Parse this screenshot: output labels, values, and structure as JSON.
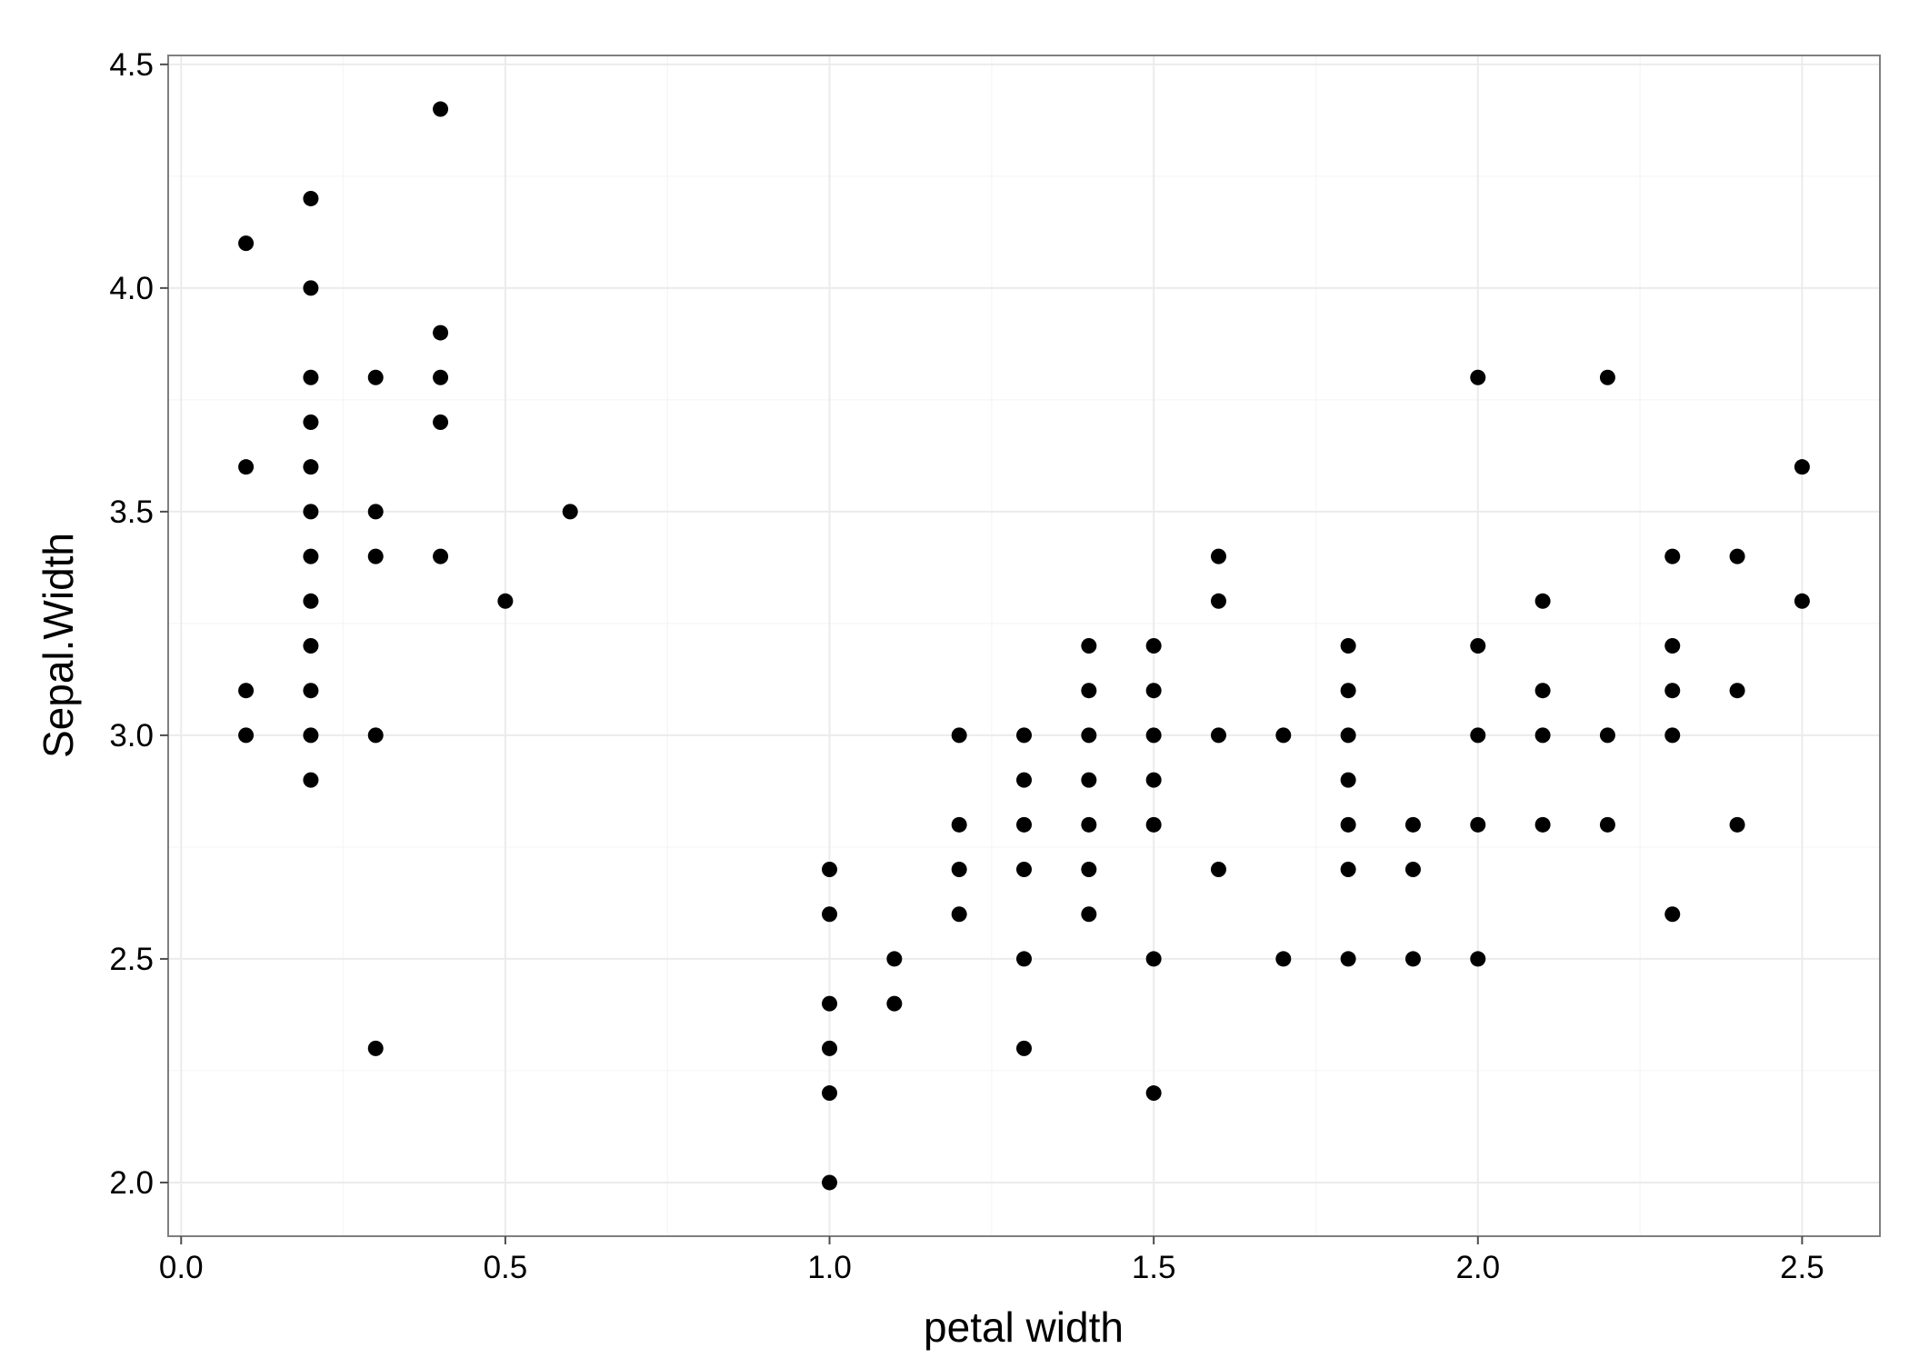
{
  "chart_data": {
    "type": "scatter",
    "xlabel": "petal width",
    "ylabel": "Sepal.Width",
    "xlim": [
      -0.02,
      2.62
    ],
    "ylim": [
      1.88,
      4.52
    ],
    "grid": true,
    "x_ticks": [
      {
        "value": 0.0,
        "label": "0.0"
      },
      {
        "value": 0.5,
        "label": "0.5"
      },
      {
        "value": 1.0,
        "label": "1.0"
      },
      {
        "value": 1.5,
        "label": "1.5"
      },
      {
        "value": 2.0,
        "label": "2.0"
      },
      {
        "value": 2.5,
        "label": "2.5"
      }
    ],
    "y_ticks": [
      {
        "value": 2.0,
        "label": "2.0"
      },
      {
        "value": 2.5,
        "label": "2.5"
      },
      {
        "value": 3.0,
        "label": "3.0"
      },
      {
        "value": 3.5,
        "label": "3.5"
      },
      {
        "value": 4.0,
        "label": "4.0"
      },
      {
        "value": 4.5,
        "label": "4.5"
      }
    ],
    "x_minor": [
      0.25,
      0.75,
      1.25,
      1.75,
      2.25
    ],
    "y_minor": [
      2.25,
      2.75,
      3.25,
      3.75,
      4.25
    ],
    "colors": {
      "point": "#000000",
      "panel_border": "#7f7f7f",
      "grid_major": "#ebebeb",
      "grid_minor": "#f5f5f5",
      "tick": "#4d4d4d"
    },
    "points": [
      [
        0.1,
        4.1
      ],
      [
        0.1,
        3.6
      ],
      [
        0.1,
        3.1
      ],
      [
        0.1,
        3.0
      ],
      [
        0.2,
        4.2
      ],
      [
        0.2,
        4.0
      ],
      [
        0.2,
        3.8
      ],
      [
        0.2,
        3.7
      ],
      [
        0.2,
        3.6
      ],
      [
        0.2,
        3.5
      ],
      [
        0.2,
        3.4
      ],
      [
        0.2,
        3.3
      ],
      [
        0.2,
        3.2
      ],
      [
        0.2,
        3.1
      ],
      [
        0.2,
        3.0
      ],
      [
        0.2,
        2.9
      ],
      [
        0.3,
        3.8
      ],
      [
        0.3,
        3.5
      ],
      [
        0.3,
        3.4
      ],
      [
        0.3,
        3.0
      ],
      [
        0.3,
        2.3
      ],
      [
        0.4,
        4.4
      ],
      [
        0.4,
        3.9
      ],
      [
        0.4,
        3.8
      ],
      [
        0.4,
        3.7
      ],
      [
        0.4,
        3.4
      ],
      [
        0.5,
        3.3
      ],
      [
        0.6,
        3.5
      ],
      [
        1.0,
        2.7
      ],
      [
        1.0,
        2.6
      ],
      [
        1.0,
        2.4
      ],
      [
        1.0,
        2.3
      ],
      [
        1.0,
        2.2
      ],
      [
        1.0,
        2.0
      ],
      [
        1.1,
        2.5
      ],
      [
        1.1,
        2.4
      ],
      [
        1.2,
        3.0
      ],
      [
        1.2,
        2.8
      ],
      [
        1.2,
        2.7
      ],
      [
        1.2,
        2.6
      ],
      [
        1.3,
        3.0
      ],
      [
        1.3,
        2.9
      ],
      [
        1.3,
        2.8
      ],
      [
        1.3,
        2.7
      ],
      [
        1.3,
        2.5
      ],
      [
        1.3,
        2.3
      ],
      [
        1.4,
        3.2
      ],
      [
        1.4,
        3.1
      ],
      [
        1.4,
        3.0
      ],
      [
        1.4,
        2.9
      ],
      [
        1.4,
        2.8
      ],
      [
        1.4,
        2.7
      ],
      [
        1.4,
        2.6
      ],
      [
        1.5,
        3.2
      ],
      [
        1.5,
        3.1
      ],
      [
        1.5,
        3.0
      ],
      [
        1.5,
        2.9
      ],
      [
        1.5,
        2.8
      ],
      [
        1.5,
        2.5
      ],
      [
        1.5,
        2.2
      ],
      [
        1.6,
        3.4
      ],
      [
        1.6,
        3.3
      ],
      [
        1.6,
        3.0
      ],
      [
        1.6,
        2.7
      ],
      [
        1.7,
        3.0
      ],
      [
        1.7,
        2.5
      ],
      [
        1.8,
        3.2
      ],
      [
        1.8,
        3.1
      ],
      [
        1.8,
        3.0
      ],
      [
        1.8,
        2.9
      ],
      [
        1.8,
        2.8
      ],
      [
        1.8,
        2.7
      ],
      [
        1.8,
        2.5
      ],
      [
        1.9,
        2.8
      ],
      [
        1.9,
        2.7
      ],
      [
        1.9,
        2.5
      ],
      [
        2.0,
        3.8
      ],
      [
        2.0,
        3.2
      ],
      [
        2.0,
        3.0
      ],
      [
        2.0,
        2.8
      ],
      [
        2.0,
        2.5
      ],
      [
        2.1,
        3.3
      ],
      [
        2.1,
        3.1
      ],
      [
        2.1,
        3.0
      ],
      [
        2.1,
        2.8
      ],
      [
        2.2,
        3.8
      ],
      [
        2.2,
        3.0
      ],
      [
        2.2,
        2.8
      ],
      [
        2.3,
        3.4
      ],
      [
        2.3,
        3.2
      ],
      [
        2.3,
        3.1
      ],
      [
        2.3,
        3.0
      ],
      [
        2.3,
        2.6
      ],
      [
        2.4,
        3.4
      ],
      [
        2.4,
        3.1
      ],
      [
        2.4,
        2.8
      ],
      [
        2.5,
        3.6
      ],
      [
        2.5,
        3.3
      ]
    ]
  }
}
